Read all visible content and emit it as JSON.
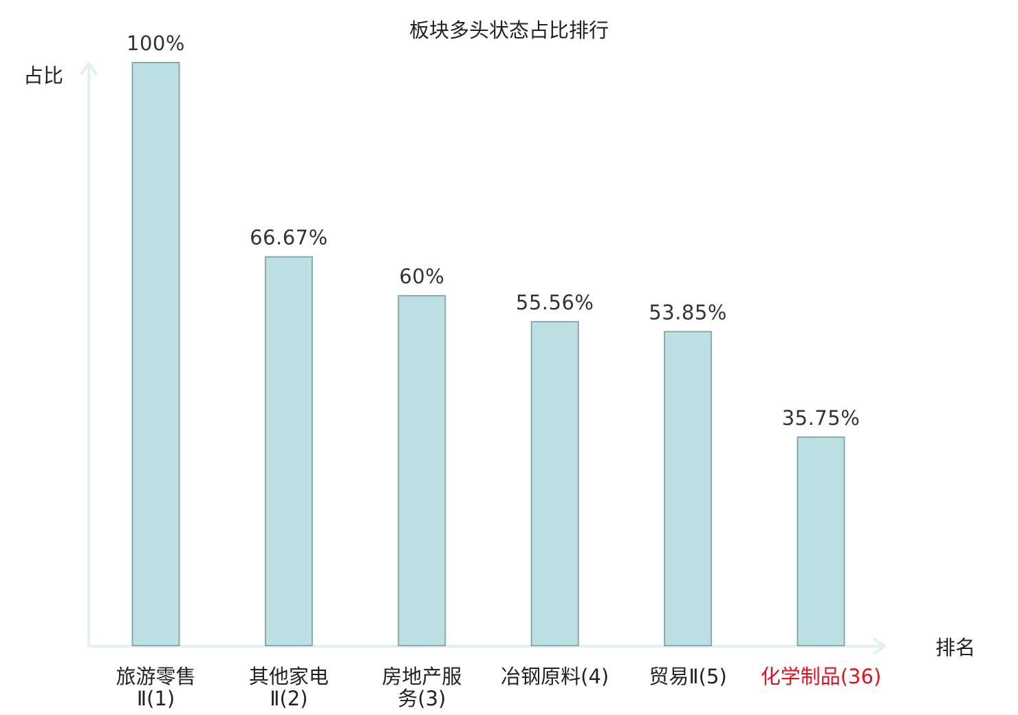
{
  "chart_data": {
    "type": "bar",
    "title": "板块多头状态占比排行",
    "ylabel": "占比",
    "xlabel": "排名",
    "ylim": [
      0,
      100
    ],
    "grid": false,
    "categories": [
      {
        "name": "旅游零售",
        "suffix": "Ⅱ(1)",
        "lines": [
          "旅游零售",
          "Ⅱ(1)"
        ],
        "highlight": false
      },
      {
        "name": "其他家电",
        "suffix": "Ⅱ(2)",
        "lines": [
          "其他家电",
          "Ⅱ(2)"
        ],
        "highlight": false
      },
      {
        "name": "房地产服务",
        "suffix": "(3)",
        "lines": [
          "房地产服",
          "务(3)"
        ],
        "highlight": false
      },
      {
        "name": "冶钢原料",
        "suffix": "(4)",
        "lines": [
          "冶钢原料(4)"
        ],
        "highlight": false
      },
      {
        "name": "贸易",
        "suffix": "Ⅱ(5)",
        "lines": [
          "贸易Ⅱ(5)"
        ],
        "highlight": false
      },
      {
        "name": "化学制品",
        "suffix": "(36)",
        "lines": [
          "化学制品(36)"
        ],
        "highlight": true
      }
    ],
    "values": [
      100,
      66.67,
      60,
      55.56,
      53.85,
      35.75
    ],
    "value_labels": [
      "100%",
      "66.67%",
      "60%",
      "55.56%",
      "53.85%",
      "35.75%"
    ]
  },
  "colors": {
    "bar_fill": "#bde0e2",
    "bar_stroke": "#8aa8ab",
    "axis": "#e0f2ee",
    "text": "#222222",
    "value_text": "#333333",
    "highlight": "#e0141e"
  }
}
